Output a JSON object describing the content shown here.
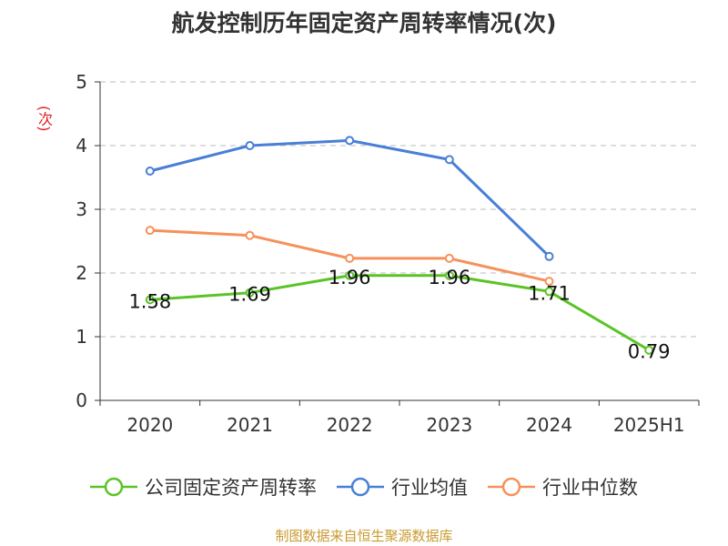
{
  "chart_data": {
    "type": "line",
    "title": "航发控制历年固定资产周转率情况(次)",
    "ylabel": "(次)",
    "xlabel": "",
    "categories": [
      "2020",
      "2021",
      "2022",
      "2023",
      "2024",
      "2025H1"
    ],
    "ylim": [
      0,
      5
    ],
    "yticks": [
      0,
      1,
      2,
      3,
      4,
      5
    ],
    "grid": true,
    "legend_position": "bottom",
    "series": [
      {
        "name": "公司固定资产周转率",
        "color": "#5ac427",
        "values": [
          1.58,
          1.69,
          1.96,
          1.96,
          1.71,
          0.79
        ],
        "labels": [
          "1.58",
          "1.69",
          "1.96",
          "1.96",
          "1.71",
          "0.79"
        ]
      },
      {
        "name": "行业均值",
        "color": "#4a7fd6",
        "values": [
          3.6,
          4.0,
          4.08,
          3.78,
          2.26,
          null
        ]
      },
      {
        "name": "行业中位数",
        "color": "#f5915a",
        "values": [
          2.67,
          2.59,
          2.23,
          2.23,
          1.87,
          null
        ]
      }
    ],
    "source": "制图数据来自恒生聚源数据库"
  }
}
